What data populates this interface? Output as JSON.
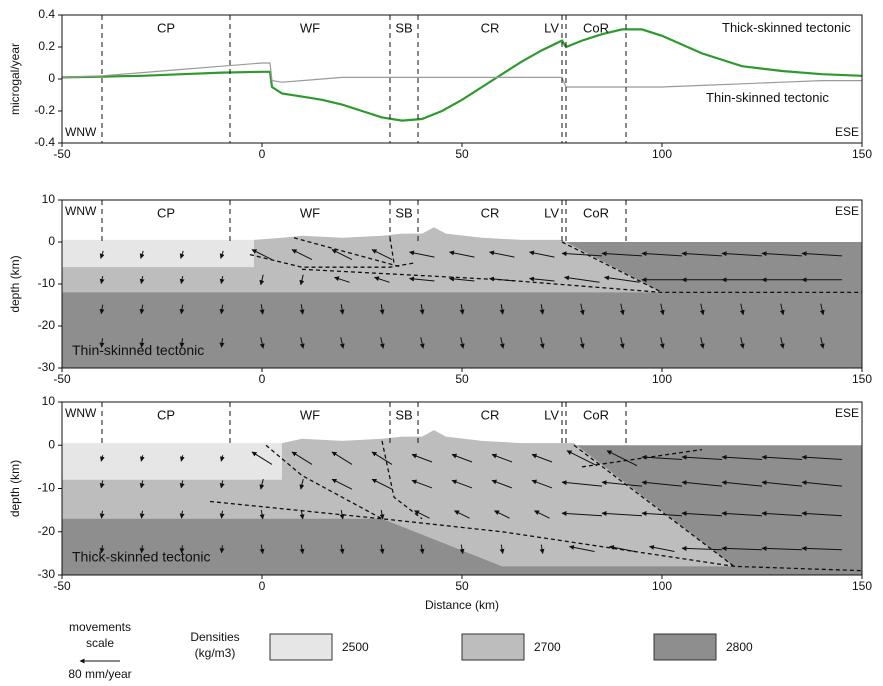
{
  "chart_data": [
    {
      "type": "line",
      "ylabel": "microgal/year",
      "x": [
        -50,
        -40,
        -30,
        -20,
        -10,
        0,
        2,
        2.5,
        5,
        10,
        15,
        20,
        25,
        30,
        35,
        40,
        45,
        50,
        55,
        60,
        65,
        70,
        75,
        76,
        80,
        85,
        90,
        95,
        100,
        110,
        120,
        130,
        140,
        150
      ],
      "series": [
        {
          "name": "Thick-skinned tectonic",
          "color": "#2e9a2e",
          "values": [
            0.01,
            0.015,
            0.02,
            0.03,
            0.04,
            0.045,
            0.045,
            -0.05,
            -0.09,
            -0.11,
            -0.13,
            -0.16,
            -0.2,
            -0.24,
            -0.26,
            -0.25,
            -0.2,
            -0.13,
            -0.05,
            0.03,
            0.11,
            0.18,
            0.24,
            0.2,
            0.24,
            0.28,
            0.31,
            0.31,
            0.27,
            0.16,
            0.08,
            0.05,
            0.03,
            0.02
          ]
        },
        {
          "name": "Thin-skinned tectonic",
          "color": "#9a9a9a",
          "values": [
            0.01,
            0.02,
            0.04,
            0.06,
            0.08,
            0.1,
            0.1,
            -0.01,
            -0.02,
            -0.01,
            0,
            0.01,
            0.01,
            0.01,
            0.01,
            0.01,
            0.01,
            0.01,
            0.01,
            0.01,
            0.01,
            0.01,
            0.01,
            -0.05,
            -0.05,
            -0.05,
            -0.05,
            -0.05,
            -0.05,
            -0.04,
            -0.03,
            -0.02,
            -0.01,
            -0.01
          ]
        }
      ],
      "xlim": [
        -50,
        150
      ],
      "xticks": [
        -50,
        0,
        50,
        100,
        150
      ],
      "ylim": [
        -0.4,
        0.4
      ],
      "yticks": [
        -0.4,
        -0.2,
        0,
        0.2,
        0.4
      ],
      "boundaries": [
        -40,
        -8,
        32,
        39,
        75,
        76,
        91
      ],
      "regions": [
        "CP",
        "WF",
        "SB",
        "CR",
        "LV",
        "CoR"
      ],
      "ends": [
        "WNW",
        "ESE"
      ]
    },
    {
      "type": "section",
      "ylabel": "depth (km)",
      "annotation": "Thin-skinned tectonic",
      "xlim": [
        -50,
        150
      ],
      "xticks": [
        -50,
        0,
        50,
        100,
        150
      ],
      "ylim": [
        -30,
        10
      ],
      "yticks": [
        -30,
        -20,
        -10,
        0,
        10
      ],
      "boundaries": [
        -40,
        -8,
        32,
        39,
        75,
        76,
        91
      ],
      "regions": [
        "CP",
        "WF",
        "SB",
        "CR",
        "LV",
        "CoR"
      ],
      "ends": [
        "WNW",
        "ESE"
      ],
      "layers": [
        {
          "color": "#8e8e8e",
          "points": [
            [
              -50,
              0
            ],
            [
              150,
              0
            ],
            [
              150,
              -30
            ],
            [
              -50,
              -30
            ]
          ]
        },
        {
          "color": "#bdbdbd",
          "points": [
            [
              -50,
              -6
            ],
            [
              -2,
              -6
            ],
            [
              -2,
              0.5
            ],
            [
              5,
              1
            ],
            [
              10,
              1.5
            ],
            [
              20,
              1
            ],
            [
              30,
              1.5
            ],
            [
              35,
              2
            ],
            [
              40,
              2
            ],
            [
              43,
              3.5
            ],
            [
              46,
              2
            ],
            [
              55,
              1
            ],
            [
              65,
              0.5
            ],
            [
              75,
              0.5
            ],
            [
              100,
              -12
            ],
            [
              -50,
              -12
            ]
          ]
        },
        {
          "color": "#e6e6e6",
          "points": [
            [
              -50,
              0.5
            ],
            [
              -2,
              0.5
            ],
            [
              -2,
              -6
            ],
            [
              -50,
              -6
            ]
          ]
        }
      ],
      "faults": [
        [
          [
            -3,
            -3
          ],
          [
            10,
            -6
          ],
          [
            32,
            -6
          ],
          [
            38,
            -5
          ]
        ],
        [
          [
            10,
            -6.5
          ],
          [
            60,
            -9
          ],
          [
            100,
            -12
          ],
          [
            150,
            -12
          ]
        ],
        [
          [
            75,
            0
          ],
          [
            100,
            -12
          ]
        ],
        [
          [
            32,
            1
          ],
          [
            33,
            -5
          ]
        ],
        [
          [
            8,
            1
          ],
          [
            35,
            -6
          ]
        ]
      ],
      "arrows": {
        "x": [
          -40,
          -30,
          -20,
          -10,
          0,
          10,
          20,
          30,
          40,
          50,
          60,
          70,
          80,
          90,
          100,
          110,
          120,
          130,
          140
        ],
        "depth": [
          -3,
          -9,
          -16,
          -24
        ],
        "u": [
          [
            -5,
            -5,
            -5,
            -5,
            -40,
            -40,
            -40,
            -40,
            -50,
            -50,
            -50,
            -50,
            -80,
            -80,
            -80,
            -80,
            -80,
            -80,
            -80
          ],
          [
            -3,
            -3,
            -3,
            -3,
            -5,
            -5,
            -30,
            -30,
            -50,
            -50,
            -50,
            -50,
            -70,
            -70,
            -80,
            -80,
            -80,
            -80,
            -80
          ],
          [
            -3,
            -3,
            -3,
            -3,
            3,
            3,
            3,
            3,
            3,
            3,
            3,
            3,
            5,
            5,
            5,
            5,
            5,
            5,
            5
          ],
          [
            -2,
            -2,
            -2,
            -2,
            5,
            5,
            5,
            5,
            5,
            5,
            5,
            5,
            5,
            5,
            5,
            5,
            5,
            5,
            5
          ]
        ],
        "v": [
          [
            -15,
            -15,
            -15,
            -15,
            20,
            20,
            20,
            20,
            10,
            10,
            10,
            10,
            5,
            5,
            5,
            5,
            5,
            5,
            5
          ],
          [
            -15,
            -15,
            -15,
            -15,
            -20,
            -20,
            10,
            10,
            5,
            5,
            5,
            5,
            10,
            10,
            0,
            0,
            0,
            0,
            0
          ],
          [
            -18,
            -18,
            -18,
            -18,
            -20,
            -20,
            -20,
            -20,
            -20,
            -20,
            -20,
            -20,
            -22,
            -22,
            -22,
            -22,
            -22,
            -22,
            -22
          ],
          [
            -18,
            -18,
            -18,
            -18,
            -22,
            -22,
            -22,
            -22,
            -22,
            -22,
            -22,
            -22,
            -22,
            -22,
            -22,
            -22,
            -22,
            -22,
            -22
          ]
        ]
      }
    },
    {
      "type": "section",
      "ylabel": "depth (km)",
      "xlabel": "Distance (km)",
      "annotation": "Thick-skinned tectonic",
      "xlim": [
        -50,
        150
      ],
      "xticks": [
        -50,
        0,
        50,
        100,
        150
      ],
      "ylim": [
        -30,
        10
      ],
      "yticks": [
        -30,
        -20,
        -10,
        0,
        10
      ],
      "boundaries": [
        -40,
        -8,
        32,
        39,
        75,
        76,
        91
      ],
      "regions": [
        "CP",
        "WF",
        "SB",
        "CR",
        "LV",
        "CoR"
      ],
      "ends": [
        "WNW",
        "ESE"
      ],
      "layers": [
        {
          "color": "#8e8e8e",
          "points": [
            [
              -50,
              0
            ],
            [
              150,
              0
            ],
            [
              150,
              -30
            ],
            [
              -50,
              -30
            ]
          ]
        },
        {
          "color": "#bdbdbd",
          "points": [
            [
              -50,
              -8
            ],
            [
              5,
              -8
            ],
            [
              5,
              0.5
            ],
            [
              10,
              1.5
            ],
            [
              20,
              1
            ],
            [
              30,
              1.5
            ],
            [
              35,
              2
            ],
            [
              40,
              2
            ],
            [
              43,
              3.5
            ],
            [
              46,
              2
            ],
            [
              55,
              1
            ],
            [
              65,
              0.5
            ],
            [
              78,
              0.5
            ],
            [
              118,
              -28
            ],
            [
              60,
              -28
            ],
            [
              30,
              -17
            ],
            [
              -50,
              -17
            ]
          ]
        },
        {
          "color": "#e6e6e6",
          "points": [
            [
              -50,
              0.5
            ],
            [
              5,
              0.5
            ],
            [
              5,
              -8
            ],
            [
              -50,
              -8
            ]
          ]
        }
      ],
      "faults": [
        [
          [
            1,
            0
          ],
          [
            10,
            -7
          ],
          [
            30,
            -17
          ]
        ],
        [
          [
            -13,
            -13
          ],
          [
            30,
            -17
          ],
          [
            60,
            -20
          ],
          [
            118,
            -28
          ],
          [
            150,
            -29
          ]
        ],
        [
          [
            30,
            1
          ],
          [
            33,
            -12
          ],
          [
            40,
            -17
          ]
        ],
        [
          [
            78,
            0
          ],
          [
            118,
            -28
          ]
        ],
        [
          [
            80,
            -5
          ],
          [
            110,
            -1
          ]
        ]
      ],
      "arrows": {
        "x": [
          -40,
          -30,
          -20,
          -10,
          0,
          10,
          20,
          30,
          40,
          50,
          60,
          70,
          80,
          90,
          100,
          110,
          120,
          130,
          140
        ],
        "depth": [
          -3,
          -9,
          -16,
          -24
        ],
        "u": [
          [
            -3,
            -3,
            -3,
            -3,
            -40,
            -40,
            -40,
            -40,
            -40,
            -40,
            -40,
            -40,
            -60,
            -60,
            -80,
            -80,
            -80,
            -80,
            -80
          ],
          [
            -3,
            -3,
            -3,
            -3,
            -5,
            -5,
            -40,
            -40,
            -40,
            -40,
            -40,
            -40,
            -80,
            -80,
            -80,
            -80,
            -80,
            -80,
            -80
          ],
          [
            -2,
            -2,
            -2,
            -2,
            3,
            3,
            3,
            3,
            -30,
            -30,
            -30,
            -30,
            -80,
            -80,
            -80,
            -80,
            -80,
            -80,
            -80
          ],
          [
            -2,
            -2,
            -2,
            -2,
            3,
            3,
            3,
            3,
            3,
            3,
            3,
            3,
            -50,
            -50,
            -50,
            -80,
            -80,
            -80,
            -80
          ]
        ],
        "v": [
          [
            -12,
            -12,
            -12,
            -12,
            25,
            25,
            25,
            25,
            15,
            15,
            15,
            15,
            30,
            30,
            5,
            5,
            5,
            5,
            5
          ],
          [
            -15,
            -15,
            -15,
            -15,
            -20,
            -20,
            20,
            20,
            15,
            15,
            15,
            15,
            8,
            8,
            8,
            8,
            8,
            8,
            8
          ],
          [
            -15,
            -15,
            -15,
            -15,
            -18,
            -18,
            -18,
            -18,
            15,
            15,
            15,
            15,
            5,
            5,
            5,
            5,
            5,
            5,
            5
          ],
          [
            -15,
            -15,
            -15,
            -15,
            -18,
            -18,
            -18,
            -18,
            -18,
            -18,
            -18,
            -18,
            10,
            10,
            10,
            3,
            3,
            3,
            3
          ]
        ]
      }
    }
  ],
  "legend": {
    "movements_title": "movements scale",
    "arrow_label": "80 mm/year",
    "arrow_value": 80,
    "densities_title": "Densities (kg/m3)",
    "densities": [
      2500,
      2700,
      2800
    ],
    "colors": [
      "#e6e6e6",
      "#bdbdbd",
      "#8e8e8e"
    ]
  }
}
